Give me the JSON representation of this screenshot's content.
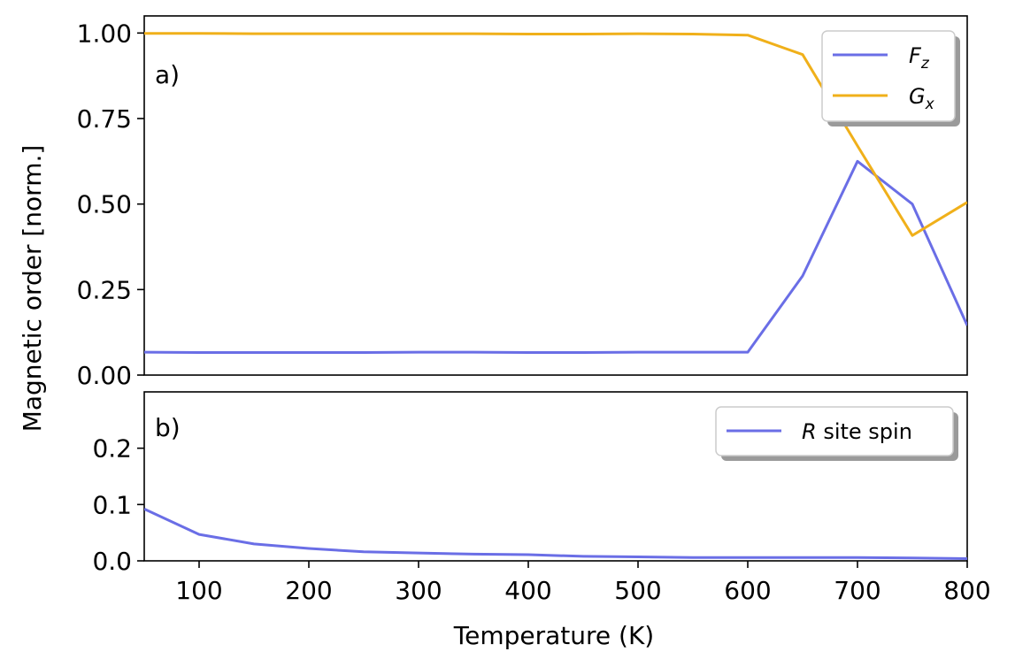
{
  "chart_data": [
    {
      "type": "line",
      "panel_label": "a)",
      "ylabel": "Magnetic order [norm.]",
      "xlim": [
        50,
        800
      ],
      "ylim": [
        0,
        1.05
      ],
      "yticks": [
        "0.00",
        "0.25",
        "0.50",
        "0.75",
        "1.00"
      ],
      "ytick_values": [
        0,
        0.25,
        0.5,
        0.75,
        1.0
      ],
      "grid": false,
      "legend_position": "top-right",
      "series": [
        {
          "name": "F",
          "name_sub": "z",
          "color": "#6a6ee6",
          "x": [
            50,
            100,
            150,
            200,
            250,
            300,
            350,
            400,
            450,
            500,
            550,
            600,
            650,
            700,
            750,
            800
          ],
          "values": [
            0.067,
            0.066,
            0.066,
            0.066,
            0.066,
            0.067,
            0.067,
            0.066,
            0.066,
            0.067,
            0.067,
            0.067,
            0.29,
            0.625,
            0.5,
            0.145
          ]
        },
        {
          "name": "G",
          "name_sub": "x",
          "color": "#f0b01a",
          "x": [
            50,
            100,
            150,
            200,
            250,
            300,
            350,
            400,
            450,
            500,
            550,
            600,
            650,
            700,
            750,
            800
          ],
          "values": [
            0.999,
            0.999,
            0.998,
            0.998,
            0.998,
            0.998,
            0.998,
            0.997,
            0.997,
            0.998,
            0.997,
            0.994,
            0.937,
            0.67,
            0.408,
            0.505
          ]
        }
      ]
    },
    {
      "type": "line",
      "panel_label": "b)",
      "xlabel": "Temperature (K)",
      "xlim": [
        50,
        800
      ],
      "ylim": [
        0,
        0.3
      ],
      "xticks": [
        "100",
        "200",
        "300",
        "400",
        "500",
        "600",
        "700",
        "800"
      ],
      "xtick_values": [
        100,
        200,
        300,
        400,
        500,
        600,
        700,
        800
      ],
      "yticks": [
        "0.0",
        "0.1",
        "0.2"
      ],
      "ytick_values": [
        0,
        0.1,
        0.2
      ],
      "grid": false,
      "legend_position": "top-right",
      "series": [
        {
          "name": "R",
          "name_rest": " site spin",
          "color": "#6a6ee6",
          "x": [
            50,
            100,
            150,
            200,
            250,
            300,
            350,
            400,
            450,
            500,
            550,
            600,
            650,
            700,
            750,
            800
          ],
          "values": [
            0.092,
            0.047,
            0.03,
            0.022,
            0.016,
            0.014,
            0.012,
            0.011,
            0.008,
            0.007,
            0.006,
            0.006,
            0.006,
            0.006,
            0.005,
            0.004
          ]
        }
      ]
    }
  ]
}
